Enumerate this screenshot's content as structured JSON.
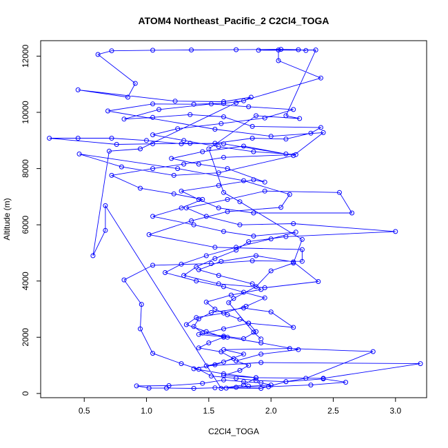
{
  "chart_data": {
    "type": "scatter",
    "title": "ATOM4 Northeast_Pacific_2 C2Cl4_TOGA",
    "xlabel": "C2Cl4_TOGA",
    "ylabel": "Altitude (m)",
    "xlim": [
      0.15,
      3.25
    ],
    "ylim": [
      -150,
      12550
    ],
    "x_ticks": [
      0.5,
      1.0,
      1.5,
      2.0,
      2.5,
      3.0
    ],
    "x_tick_labels": [
      "0.5",
      "1.0",
      "1.5",
      "2.0",
      "2.5",
      "3.0"
    ],
    "y_ticks": [
      0,
      2000,
      4000,
      6000,
      8000,
      10000,
      12000
    ],
    "y_tick_labels": [
      "0",
      "2000",
      "4000",
      "6000",
      "8000",
      "10000",
      "12000"
    ],
    "grid": false,
    "color": "#0000ff",
    "points": [
      [
        2.28,
        12200
      ],
      [
        2.22,
        12230
      ],
      [
        2.08,
        12240
      ],
      [
        1.72,
        12230
      ],
      [
        1.36,
        12220
      ],
      [
        1.05,
        12210
      ],
      [
        0.72,
        12190
      ],
      [
        0.61,
        12060
      ],
      [
        0.91,
        11030
      ],
      [
        0.85,
        10540
      ],
      [
        0.45,
        10800
      ],
      [
        1.23,
        10400
      ],
      [
        1.62,
        10380
      ],
      [
        1.84,
        10540
      ],
      [
        1.78,
        10410
      ],
      [
        1.62,
        10320
      ],
      [
        1.38,
        10290
      ],
      [
        1.05,
        10300
      ],
      [
        0.69,
        10050
      ],
      [
        1.55,
        9400
      ],
      [
        2.0,
        9150
      ],
      [
        2.42,
        9280
      ],
      [
        2.18,
        8460
      ],
      [
        1.58,
        7850
      ],
      [
        1.22,
        7760
      ],
      [
        0.8,
        8060
      ],
      [
        0.46,
        8520
      ],
      [
        1.25,
        8000
      ],
      [
        1.78,
        7570
      ],
      [
        2.15,
        7080
      ],
      [
        2.08,
        6620
      ],
      [
        1.65,
        6470
      ],
      [
        1.36,
        6140
      ],
      [
        1.02,
        5650
      ],
      [
        1.55,
        5200
      ],
      [
        2.25,
        5120
      ],
      [
        2.25,
        4700
      ],
      [
        1.85,
        4720
      ],
      [
        1.52,
        4620
      ],
      [
        1.05,
        4560
      ],
      [
        0.82,
        4040
      ],
      [
        0.96,
        3170
      ],
      [
        0.95,
        2300
      ],
      [
        1.05,
        1430
      ],
      [
        1.28,
        1060
      ],
      [
        1.42,
        860
      ],
      [
        1.52,
        620
      ],
      [
        1.72,
        540
      ],
      [
        1.88,
        460
      ],
      [
        2.12,
        420
      ],
      [
        2.42,
        520
      ],
      [
        2.6,
        400
      ],
      [
        2.32,
        300
      ],
      [
        1.98,
        240
      ],
      [
        1.72,
        220
      ],
      [
        1.55,
        200
      ],
      [
        1.38,
        180
      ],
      [
        1.16,
        190
      ],
      [
        1.02,
        190
      ],
      [
        0.92,
        270
      ],
      [
        1.18,
        280
      ],
      [
        1.45,
        360
      ],
      [
        1.62,
        480
      ],
      [
        1.78,
        420
      ],
      [
        1.92,
        380
      ],
      [
        2.0,
        300
      ],
      [
        1.82,
        260
      ],
      [
        1.64,
        190
      ],
      [
        1.92,
        180
      ],
      [
        2.12,
        420
      ],
      [
        2.28,
        540
      ],
      [
        2.82,
        1490
      ],
      [
        2.15,
        1600
      ],
      [
        1.62,
        1560
      ],
      [
        1.78,
        1400
      ],
      [
        1.62,
        1120
      ],
      [
        1.48,
        980
      ],
      [
        1.92,
        1100
      ],
      [
        3.2,
        1060
      ],
      [
        2.42,
        540
      ],
      [
        1.88,
        560
      ],
      [
        1.62,
        640
      ],
      [
        1.75,
        820
      ],
      [
        1.82,
        1000
      ],
      [
        1.72,
        1160
      ],
      [
        1.92,
        1400
      ],
      [
        2.22,
        1560
      ],
      [
        1.92,
        1800
      ],
      [
        1.65,
        2000
      ],
      [
        1.42,
        2100
      ],
      [
        1.62,
        2300
      ],
      [
        1.82,
        2500
      ],
      [
        2.18,
        2350
      ],
      [
        2.0,
        2900
      ],
      [
        1.78,
        3040
      ],
      [
        1.52,
        2880
      ],
      [
        1.42,
        2650
      ],
      [
        1.38,
        2380
      ],
      [
        1.45,
        2150
      ],
      [
        1.62,
        2040
      ],
      [
        1.78,
        1950
      ],
      [
        1.88,
        2200
      ],
      [
        1.82,
        2500
      ],
      [
        1.75,
        2640
      ],
      [
        1.65,
        2800
      ],
      [
        1.55,
        3000
      ],
      [
        1.48,
        3250
      ],
      [
        1.68,
        3500
      ],
      [
        1.92,
        3700
      ],
      [
        1.85,
        3900
      ],
      [
        1.58,
        4200
      ],
      [
        1.42,
        4400
      ],
      [
        1.6,
        4700
      ],
      [
        1.88,
        4900
      ],
      [
        2.18,
        4680
      ],
      [
        2.38,
        3980
      ],
      [
        1.95,
        3760
      ],
      [
        1.58,
        3900
      ],
      [
        1.3,
        4200
      ],
      [
        1.4,
        4500
      ],
      [
        1.55,
        4800
      ],
      [
        1.72,
        5100
      ],
      [
        1.82,
        5400
      ],
      [
        2.12,
        5580
      ],
      [
        3.0,
        5760
      ],
      [
        2.18,
        6040
      ],
      [
        1.75,
        6000
      ],
      [
        1.48,
        6300
      ],
      [
        1.32,
        6600
      ],
      [
        1.65,
        6900
      ],
      [
        1.95,
        7200
      ],
      [
        2.55,
        7150
      ],
      [
        2.65,
        6420
      ],
      [
        1.86,
        6420
      ],
      [
        1.58,
        6600
      ],
      [
        1.42,
        6900
      ],
      [
        1.28,
        7200
      ],
      [
        1.58,
        7400
      ],
      [
        1.86,
        7600
      ],
      [
        1.95,
        7520
      ],
      [
        1.65,
        8000
      ],
      [
        1.42,
        8160
      ],
      [
        1.2,
        8360
      ],
      [
        1.45,
        8600
      ],
      [
        1.78,
        8800
      ],
      [
        2.12,
        8520
      ],
      [
        1.62,
        8880
      ],
      [
        1.35,
        8900
      ],
      [
        1.05,
        8880
      ],
      [
        0.76,
        8860
      ],
      [
        0.22,
        9080
      ],
      [
        0.45,
        9080
      ],
      [
        0.72,
        9080
      ],
      [
        1.0,
        9000
      ],
      [
        1.28,
        8880
      ],
      [
        1.55,
        8900
      ],
      [
        1.85,
        9080
      ],
      [
        2.12,
        9050
      ],
      [
        2.32,
        9260
      ],
      [
        2.4,
        9460
      ],
      [
        1.85,
        9500
      ],
      [
        1.62,
        9840
      ],
      [
        1.35,
        9920
      ],
      [
        1.05,
        9820
      ],
      [
        0.82,
        9760
      ],
      [
        1.1,
        10100
      ],
      [
        1.52,
        10300
      ],
      [
        1.82,
        10200
      ],
      [
        2.18,
        10100
      ],
      [
        1.95,
        9800
      ],
      [
        1.6,
        9600
      ],
      [
        1.25,
        9420
      ],
      [
        1.05,
        9200
      ],
      [
        1.3,
        9000
      ],
      [
        1.58,
        8780
      ],
      [
        1.86,
        8600
      ],
      [
        2.2,
        8500
      ],
      [
        1.62,
        8400
      ],
      [
        1.3,
        8160
      ],
      [
        1.05,
        8000
      ],
      [
        0.72,
        7760
      ],
      [
        0.95,
        7300
      ],
      [
        1.22,
        7100
      ],
      [
        1.45,
        6900
      ],
      [
        1.28,
        6600
      ],
      [
        1.05,
        6300
      ],
      [
        1.38,
        6000
      ],
      [
        1.62,
        5760
      ],
      [
        1.86,
        5600
      ],
      [
        2.2,
        5740
      ],
      [
        2.0,
        5500
      ],
      [
        1.72,
        5200
      ],
      [
        1.48,
        4900
      ],
      [
        1.28,
        4600
      ],
      [
        1.15,
        4300
      ],
      [
        1.4,
        4000
      ],
      [
        1.62,
        3800
      ],
      [
        1.78,
        3600
      ],
      [
        1.95,
        3400
      ],
      [
        1.8,
        3100
      ],
      [
        1.62,
        2860
      ],
      [
        1.4,
        2700
      ],
      [
        1.32,
        2450
      ],
      [
        1.48,
        2200
      ],
      [
        1.62,
        2000
      ],
      [
        1.5,
        1800
      ],
      [
        1.42,
        1620
      ],
      [
        1.6,
        1480
      ],
      [
        1.7,
        1240
      ],
      [
        1.55,
        1020
      ],
      [
        1.38,
        880
      ],
      [
        1.62,
        700
      ],
      [
        1.88,
        560
      ],
      [
        1.78,
        300
      ],
      [
        1.6,
        180
      ],
      [
        0.67,
        6680
      ],
      [
        0.67,
        5800
      ],
      [
        0.57,
        4900
      ],
      [
        0.7,
        8620
      ],
      [
        0.95,
        8700
      ],
      [
        1.72,
        10340
      ],
      [
        2.4,
        11220
      ],
      [
        2.06,
        11840
      ],
      [
        2.06,
        12220
      ],
      [
        1.9,
        12210
      ],
      [
        2.36,
        12220
      ],
      [
        2.12,
        9880
      ],
      [
        2.23,
        9780
      ],
      [
        1.88,
        9880
      ],
      [
        1.5,
        8700
      ],
      [
        1.62,
        7150
      ],
      [
        1.75,
        6820
      ],
      [
        2.25,
        5480
      ],
      [
        2.18,
        4640
      ],
      [
        2.0,
        4360
      ],
      [
        1.88,
        3800
      ],
      [
        1.7,
        3380
      ],
      [
        1.66,
        3230
      ],
      [
        1.86,
        2180
      ],
      [
        1.92,
        1940
      ]
    ]
  }
}
